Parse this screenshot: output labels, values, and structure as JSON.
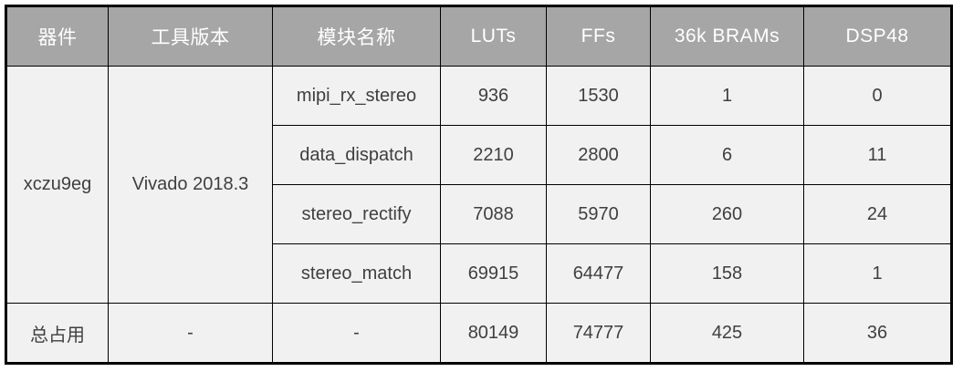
{
  "colors": {
    "header_bg": "#a6a6a6",
    "header_text": "#ffffff",
    "cell_bg": "#f1f1f1",
    "module_name_green": "#71c096",
    "value_text": "#3f3f3f",
    "border": "#000000"
  },
  "chart_data": {
    "type": "table",
    "columns": [
      "器件",
      "工具版本",
      "模块名称",
      "LUTs",
      "FFs",
      "36k BRAMs",
      "DSP48"
    ],
    "merged_cells": [
      {
        "column": "器件",
        "value": "xczu9eg",
        "rowspan": 4
      },
      {
        "column": "工具版本",
        "value": "Vivado 2018.3",
        "rowspan": 4
      }
    ],
    "rows": [
      [
        "xczu9eg",
        "Vivado 2018.3",
        "mipi_rx_stereo",
        "936",
        "1530",
        "1",
        "0"
      ],
      [
        "",
        "",
        "data_dispatch",
        "2210",
        "2800",
        "6",
        "11"
      ],
      [
        "",
        "",
        "stereo_rectify",
        "7088",
        "5970",
        "260",
        "24"
      ],
      [
        "",
        "",
        "stereo_match",
        "69915",
        "64477",
        "158",
        "1"
      ],
      [
        "总占用",
        "-",
        "-",
        "80149",
        "74777",
        "425",
        "36"
      ]
    ]
  }
}
